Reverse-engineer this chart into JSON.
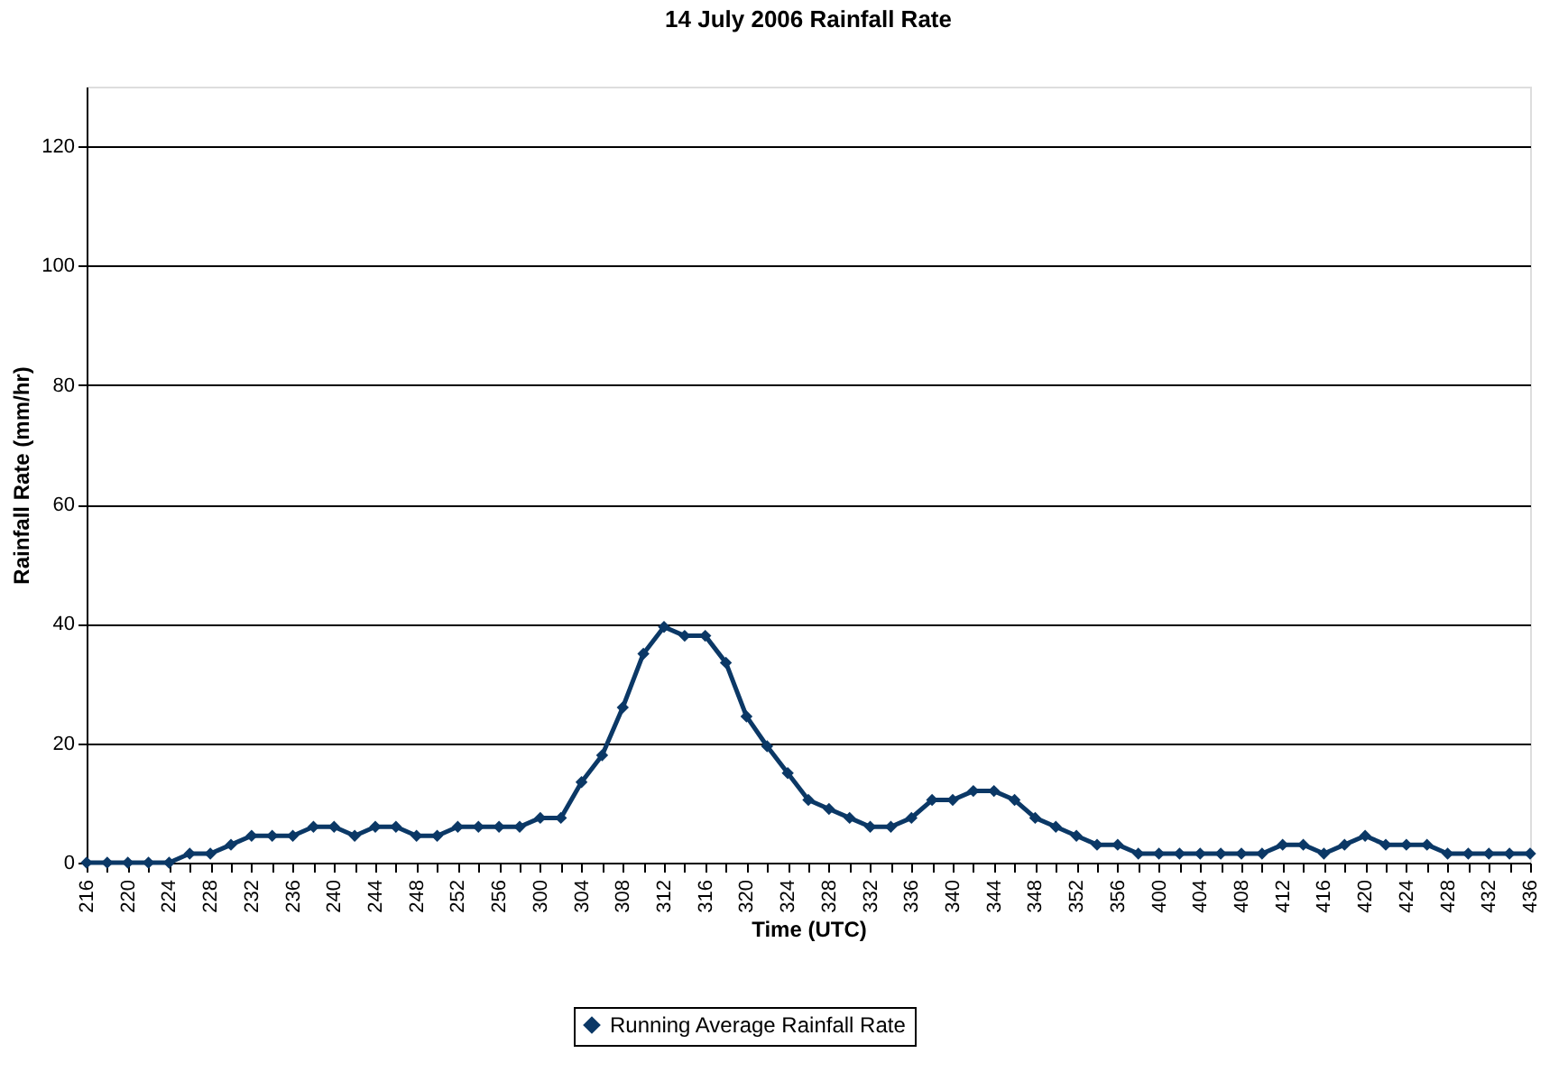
{
  "chart_data": {
    "type": "line",
    "title": "14 July 2006 Rainfall Rate",
    "xlabel": "Time (UTC)",
    "ylabel": "Rainfall Rate (mm/hr)",
    "categories": [
      "216",
      null,
      "220",
      null,
      "224",
      null,
      "228",
      null,
      "232",
      null,
      "236",
      null,
      "240",
      null,
      "244",
      null,
      "248",
      null,
      "252",
      null,
      "256",
      null,
      "300",
      null,
      "304",
      null,
      "308",
      null,
      "312",
      null,
      "316",
      null,
      "320",
      null,
      "324",
      null,
      "328",
      null,
      "332",
      null,
      "336",
      null,
      "340",
      null,
      "344",
      null,
      "348",
      null,
      "352",
      null,
      "356",
      null,
      "400",
      null,
      "404",
      null,
      "408",
      null,
      "412",
      null,
      "416",
      null,
      "420",
      null,
      "424",
      null,
      "428",
      null,
      "432",
      null,
      "436"
    ],
    "series": [
      {
        "name": "Running Average Rainfall Rate",
        "color": "#0b3866",
        "values": [
          0,
          0,
          0,
          0,
          0,
          1.5,
          1.5,
          3,
          4.5,
          4.5,
          4.5,
          6,
          6,
          4.5,
          6,
          6,
          4.5,
          4.5,
          6,
          6,
          6,
          6,
          7.5,
          7.5,
          13.5,
          18,
          26,
          35,
          39.5,
          38,
          38,
          33.5,
          24.5,
          19.5,
          15,
          10.5,
          9,
          7.5,
          6,
          6,
          7.5,
          10.5,
          10.5,
          12,
          12,
          10.5,
          7.5,
          6,
          4.5,
          3,
          3,
          1.5,
          1.5,
          1.5,
          1.5,
          1.5,
          1.5,
          1.5,
          3,
          3,
          1.5,
          3,
          4.5,
          3,
          3,
          3,
          1.5,
          1.5,
          1.5,
          1.5,
          1.5
        ]
      }
    ],
    "ylim": [
      0,
      130
    ],
    "yticks": [
      0,
      20,
      40,
      60,
      80,
      100,
      120
    ],
    "grid": "y",
    "legend": "bottom",
    "marker": "diamond",
    "line_style": "solid"
  }
}
